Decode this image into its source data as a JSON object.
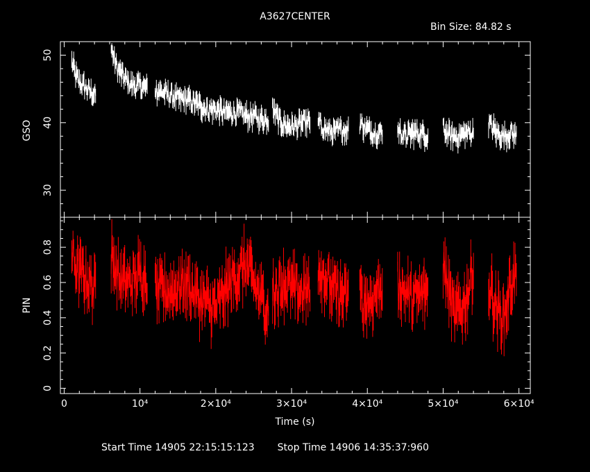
{
  "title": "A3627CENTER",
  "bin_size": "Bin Size: 84.82 s",
  "footer": {
    "start": "Start Time 14905 22:15:15:123",
    "stop": "Stop Time 14906 14:35:37:960"
  },
  "colors": {
    "background": "#000000",
    "axes": "#ffffff",
    "gso": "#ffffff",
    "pin": "#ff0000"
  },
  "chart_data": [
    {
      "type": "line",
      "panel": "top",
      "ylabel": "GSO",
      "xlim": [
        -500,
        61500
      ],
      "ylim": [
        26,
        52
      ],
      "yticks": [
        30,
        40,
        50
      ],
      "ytick_labels": [
        "30",
        "40",
        "50"
      ],
      "series": [
        {
          "segments": [
            {
              "x": [
                1000,
                1500,
                2000,
                2500,
                3000,
                3500,
                4200
              ],
              "y": [
                49,
                47,
                46,
                45.5,
                45,
                44.5,
                44
              ]
            },
            {
              "x": [
                6200,
                7000,
                8000,
                9000,
                10000,
                11000
              ],
              "y": [
                51,
                48,
                46.5,
                45.5,
                45.5,
                45
              ]
            },
            {
              "x": [
                12000,
                13000,
                14000,
                15000,
                16000,
                17000,
                18000,
                19000,
                20000,
                21000,
                22000,
                23000,
                24000,
                25000,
                26000,
                27000
              ],
              "y": [
                45,
                44.5,
                44,
                43.5,
                43.5,
                43,
                42.5,
                42,
                42,
                41.5,
                41.5,
                41.5,
                41,
                41,
                40.5,
                40.5
              ]
            },
            {
              "x": [
                27500,
                28500,
                29500,
                30500,
                31500,
                32500
              ],
              "y": [
                42,
                40,
                39.5,
                39.5,
                40,
                40
              ]
            },
            {
              "x": [
                33500,
                34500,
                35500,
                36500,
                37500
              ],
              "y": [
                40,
                39,
                38.5,
                39,
                39
              ]
            },
            {
              "x": [
                39000,
                40000,
                41000,
                42000
              ],
              "y": [
                40,
                39,
                38.5,
                38.5
              ]
            },
            {
              "x": [
                44000,
                45000,
                46000,
                47000,
                48000
              ],
              "y": [
                39,
                38,
                38.5,
                38.5,
                38
              ]
            },
            {
              "x": [
                50000,
                51000,
                52000,
                53000,
                54000
              ],
              "y": [
                39,
                38,
                38,
                38.5,
                38.5
              ]
            },
            {
              "x": [
                56000,
                57000,
                58000,
                59000,
                59700
              ],
              "y": [
                40,
                38.5,
                38,
                38.5,
                38
              ]
            }
          ]
        }
      ]
    },
    {
      "type": "line",
      "panel": "bottom",
      "xlabel": "Time (s)",
      "ylabel": "PIN",
      "xlim": [
        -500,
        61500
      ],
      "ylim": [
        -0.03,
        0.97
      ],
      "xticks": [
        0,
        10000,
        20000,
        30000,
        40000,
        50000,
        60000
      ],
      "xtick_labels": [
        "0",
        "10⁴",
        "2×10⁴",
        "3×10⁴",
        "4×10⁴",
        "5×10⁴",
        "6×10⁴"
      ],
      "yticks": [
        0,
        0.2,
        0.4,
        0.6,
        0.8
      ],
      "ytick_labels": [
        "0",
        "0.2",
        "0.4",
        "0.6",
        "0.8"
      ],
      "series": [
        {
          "segments": [
            {
              "x": [
                1000,
                2000,
                3000,
                4200
              ],
              "y": [
                0.75,
                0.65,
                0.62,
                0.55
              ]
            },
            {
              "x": [
                6200,
                7500,
                9000,
                10000,
                11000
              ],
              "y": [
                0.75,
                0.6,
                0.6,
                0.65,
                0.65
              ]
            },
            {
              "x": [
                12000,
                14000,
                16000,
                18000,
                20000,
                22000,
                24000,
                26000,
                27000
              ],
              "y": [
                0.55,
                0.55,
                0.6,
                0.5,
                0.45,
                0.6,
                0.7,
                0.5,
                0.45
              ]
            },
            {
              "x": [
                27500,
                29000,
                30500,
                32500
              ],
              "y": [
                0.55,
                0.6,
                0.55,
                0.55
              ]
            },
            {
              "x": [
                33500,
                35500,
                37500
              ],
              "y": [
                0.7,
                0.55,
                0.5
              ]
            },
            {
              "x": [
                39000,
                40500,
                42000
              ],
              "y": [
                0.5,
                0.5,
                0.6
              ]
            },
            {
              "x": [
                44000,
                46000,
                48000
              ],
              "y": [
                0.6,
                0.5,
                0.55
              ]
            },
            {
              "x": [
                50000,
                51500,
                53000,
                54000
              ],
              "y": [
                0.7,
                0.4,
                0.5,
                0.7
              ]
            },
            {
              "x": [
                56000,
                57000,
                58000,
                59000,
                59700
              ],
              "y": [
                0.6,
                0.45,
                0.4,
                0.6,
                0.65
              ]
            }
          ]
        }
      ]
    }
  ]
}
